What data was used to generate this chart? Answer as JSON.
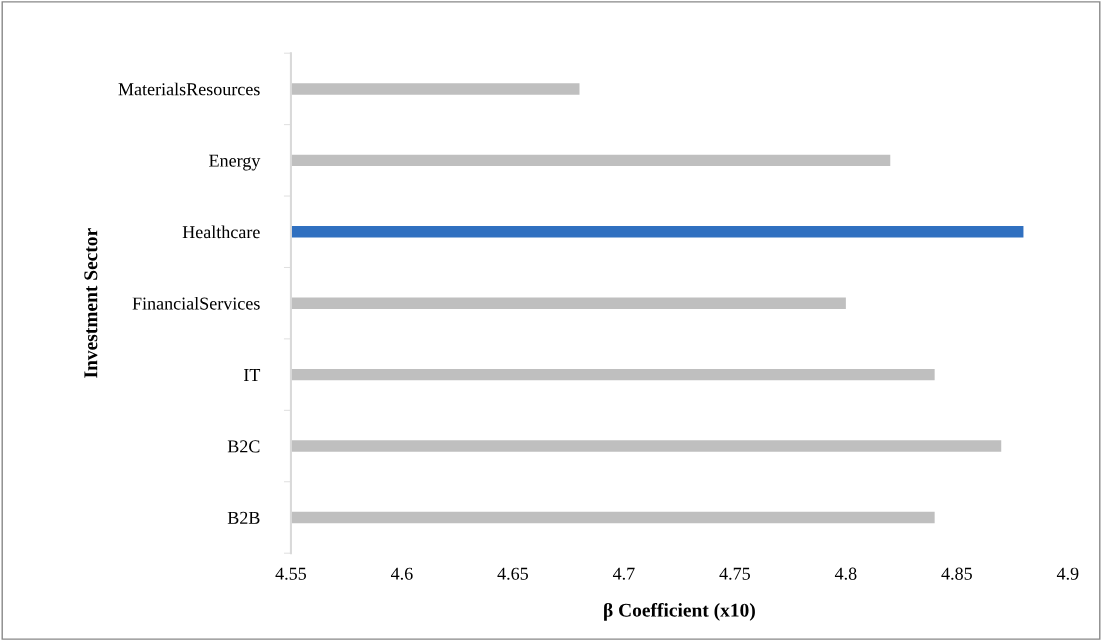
{
  "chart_data": {
    "type": "bar",
    "orientation": "horizontal",
    "xlabel": "β Coefficient (x10)",
    "ylabel": "Investment Sector",
    "categories": [
      "MaterialsResources",
      "Energy",
      "Healthcare",
      "FinancialServices",
      "IT",
      "B2C",
      "B2B"
    ],
    "values": [
      4.68,
      4.82,
      4.88,
      4.8,
      4.84,
      4.87,
      4.84
    ],
    "colors": [
      "#bfbfbf",
      "#bfbfbf",
      "#3070c0",
      "#bfbfbf",
      "#bfbfbf",
      "#bfbfbf",
      "#bfbfbf"
    ],
    "xlim": [
      4.55,
      4.9
    ],
    "xticks": [
      4.55,
      4.6,
      4.65,
      4.7,
      4.75,
      4.8,
      4.85,
      4.9
    ],
    "grid": false,
    "legend": false
  }
}
